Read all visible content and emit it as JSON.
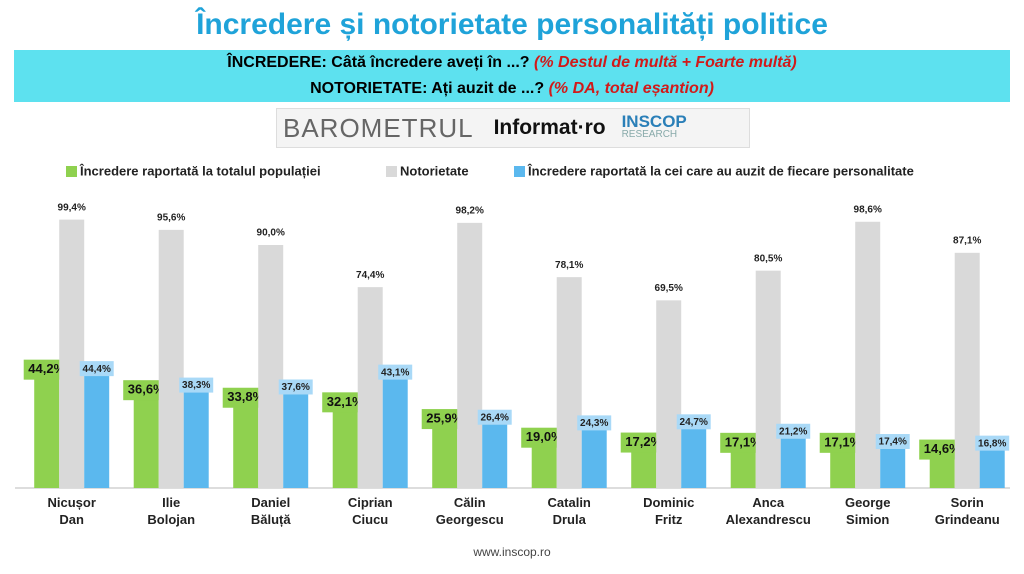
{
  "header": {
    "title": "Încredere și notorietate personalități politice",
    "line1": {
      "lead": "ÎNCREDERE: Câtă încredere aveți în ...? ",
      "note": "(% Destul de multă + Foarte multă)"
    },
    "line2": {
      "lead": "NOTORIETATE: Ați auzit de ...? ",
      "note": "(% DA, total eșantion)"
    },
    "logos": [
      "BAROMETRUL",
      "Informat·ro",
      "INSCOP",
      "RESEARCH"
    ]
  },
  "chart_data": {
    "type": "bar",
    "categories": [
      "Nicușor Dan",
      "Ilie Bolojan",
      "Daniel Băluță",
      "Ciprian Ciucu",
      "Călin Georgescu",
      "Catalin Drula",
      "Dominic Fritz",
      "Anca Alexandrescu",
      "George Simion",
      "Sorin Grindeanu"
    ],
    "ylim": [
      0,
      100
    ],
    "legend": "top",
    "series": [
      {
        "name": "Încredere raportată la totalul populației",
        "color": "#8fd14f",
        "values": [
          44.2,
          36.6,
          33.8,
          32.1,
          25.9,
          19.0,
          17.2,
          17.1,
          17.1,
          14.6
        ],
        "value_labels": [
          "44,2%",
          "36,6%",
          "33,8%",
          "32,1%",
          "25,9%",
          "19,0%",
          "17,2%",
          "17,1%",
          "17,1%",
          "14,6%"
        ]
      },
      {
        "name": "Notorietate",
        "color": "#d9d9d9",
        "values": [
          99.4,
          95.6,
          90.0,
          74.4,
          98.2,
          78.1,
          69.5,
          80.5,
          98.6,
          87.1
        ],
        "value_labels": [
          "99,4%",
          "95,6%",
          "90,0%",
          "74,4%",
          "98,2%",
          "78,1%",
          "69,5%",
          "80,5%",
          "98,6%",
          "87,1%"
        ]
      },
      {
        "name": "Încredere raportată la cei care au auzit de fiecare personalitate",
        "color": "#5bb8ee",
        "values": [
          44.4,
          38.3,
          37.6,
          43.1,
          26.4,
          24.3,
          24.7,
          21.2,
          17.4,
          16.8
        ],
        "value_labels": [
          "44,4%",
          "38,3%",
          "37,6%",
          "43,1%",
          "26,4%",
          "24,3%",
          "24,7%",
          "21,2%",
          "17,4%",
          "16,8%"
        ]
      }
    ]
  },
  "footer": "www.inscop.ro"
}
